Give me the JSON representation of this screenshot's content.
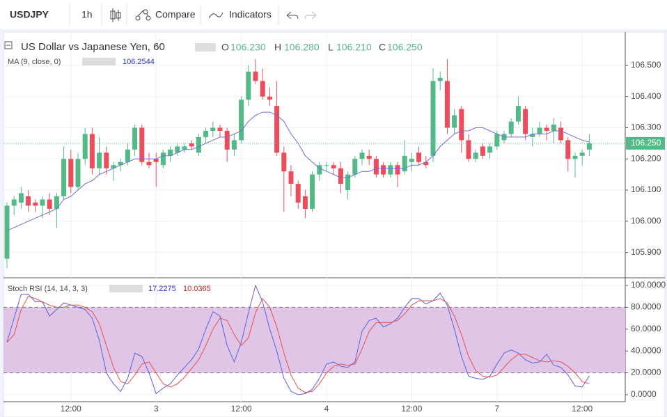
{
  "toolbar": {
    "symbol": "USDJPY",
    "interval": "1h",
    "compare": "Compare",
    "indicators": "Indicators"
  },
  "chart_data": [
    {
      "type": "candlestick",
      "title": "US Dollar vs Japanese Yen, 60",
      "ohlc_text": {
        "o": "O",
        "h": "H",
        "l": "L",
        "c": "C",
        "open": "106.230",
        "high": "106.280",
        "low": "106.210",
        "close": "106.250"
      },
      "last_price_label": "106.250",
      "up_color": "#53b987",
      "down_color": "#eb4d5c",
      "categories": [
        null,
        null,
        null,
        null,
        null,
        null,
        null,
        null,
        null,
        "12:00",
        null,
        null,
        null,
        null,
        null,
        null,
        null,
        null,
        null,
        null,
        null,
        "3",
        null,
        null,
        null,
        null,
        null,
        null,
        null,
        null,
        null,
        null,
        null,
        "12:00",
        null,
        null,
        null,
        null,
        null,
        null,
        null,
        null,
        null,
        null,
        null,
        "4",
        null,
        null,
        null,
        null,
        null,
        null,
        null,
        null,
        null,
        null,
        null,
        "12:00",
        null,
        null,
        null,
        null,
        null,
        null,
        null,
        null,
        null,
        null,
        null,
        "7",
        null,
        null,
        null,
        null,
        null,
        null,
        null,
        null,
        null,
        null,
        null,
        "12:00",
        null
      ],
      "open": [
        105.88,
        106.05,
        106.06,
        106.08,
        106.06,
        106.05,
        106.07,
        106.04,
        106.08,
        106.2,
        106.11,
        106.2,
        106.28,
        106.17,
        106.22,
        106.17,
        106.18,
        106.19,
        106.23,
        106.3,
        106.19,
        106.2,
        106.18,
        106.21,
        106.22,
        106.23,
        106.25,
        106.22,
        106.27,
        106.29,
        106.3,
        106.29,
        106.23,
        106.26,
        106.39,
        106.48,
        106.45,
        106.4,
        106.37,
        106.22,
        106.16,
        106.12,
        106.08,
        106.04,
        106.15,
        106.18,
        106.18,
        106.17,
        106.1,
        106.15,
        106.2,
        106.21,
        106.2,
        106.18,
        106.15,
        106.18,
        106.16,
        106.19,
        106.22,
        106.19,
        106.21,
        106.45,
        106.45,
        106.3,
        106.36,
        106.26,
        106.2,
        106.24,
        106.22,
        106.24,
        106.26,
        106.28,
        106.32,
        106.36,
        106.27,
        106.28,
        106.3,
        106.29,
        106.3,
        106.26,
        106.2,
        106.21,
        106.23
      ],
      "high": [
        106.06,
        106.08,
        106.11,
        106.1,
        106.07,
        106.08,
        106.09,
        106.09,
        106.24,
        106.23,
        106.22,
        106.3,
        106.3,
        106.27,
        106.24,
        106.19,
        106.2,
        106.25,
        106.31,
        106.31,
        106.22,
        106.22,
        106.23,
        106.24,
        106.25,
        106.25,
        106.26,
        106.28,
        106.3,
        106.32,
        106.31,
        106.3,
        106.28,
        106.4,
        106.5,
        106.52,
        106.49,
        106.43,
        106.45,
        106.24,
        106.18,
        106.13,
        106.1,
        106.16,
        106.19,
        106.19,
        106.19,
        106.19,
        106.16,
        106.21,
        106.23,
        106.23,
        106.21,
        106.19,
        106.19,
        106.19,
        106.26,
        106.22,
        106.24,
        106.21,
        106.49,
        106.48,
        106.52,
        106.36,
        106.37,
        106.28,
        106.23,
        106.25,
        106.25,
        106.29,
        106.29,
        106.33,
        106.4,
        106.37,
        106.3,
        106.32,
        106.31,
        106.33,
        106.32,
        106.27,
        106.22,
        106.23,
        106.28
      ],
      "low": [
        105.85,
        106.02,
        106.04,
        106.03,
        106.03,
        106.01,
        106.02,
        105.98,
        106.07,
        106.09,
        106.1,
        106.18,
        106.15,
        106.15,
        106.15,
        106.13,
        106.16,
        106.18,
        106.21,
        106.18,
        106.17,
        106.11,
        106.17,
        106.19,
        106.21,
        106.22,
        106.23,
        106.21,
        106.25,
        106.27,
        106.27,
        106.19,
        106.21,
        106.25,
        106.37,
        106.44,
        106.39,
        106.37,
        106.21,
        106.03,
        106.08,
        106.04,
        106.01,
        106.03,
        106.13,
        106.16,
        106.15,
        106.09,
        106.07,
        106.14,
        106.18,
        106.18,
        106.14,
        106.14,
        106.14,
        106.11,
        106.15,
        106.16,
        106.18,
        106.17,
        106.19,
        106.42,
        106.28,
        106.28,
        106.22,
        106.19,
        106.19,
        106.2,
        106.2,
        106.23,
        106.25,
        106.27,
        106.31,
        106.26,
        106.24,
        106.27,
        106.26,
        106.25,
        106.25,
        106.16,
        106.14,
        106.18,
        106.21
      ],
      "close": [
        106.05,
        106.07,
        106.09,
        106.05,
        106.05,
        106.07,
        106.04,
        106.08,
        106.2,
        106.11,
        106.2,
        106.28,
        106.17,
        106.22,
        106.17,
        106.18,
        106.19,
        106.23,
        106.3,
        106.19,
        106.18,
        106.19,
        106.22,
        106.23,
        106.24,
        106.24,
        106.24,
        106.27,
        106.29,
        106.3,
        106.29,
        106.23,
        106.26,
        106.39,
        106.48,
        106.45,
        106.4,
        106.39,
        106.22,
        106.16,
        106.12,
        106.06,
        106.04,
        106.15,
        106.18,
        106.18,
        106.17,
        106.12,
        106.15,
        106.2,
        106.22,
        106.2,
        106.15,
        106.15,
        106.18,
        106.15,
        106.21,
        106.2,
        106.19,
        106.18,
        106.45,
        106.46,
        106.3,
        106.34,
        106.26,
        106.2,
        106.22,
        106.21,
        106.24,
        106.28,
        106.28,
        106.32,
        106.37,
        106.28,
        106.28,
        106.3,
        106.29,
        106.31,
        106.26,
        106.2,
        106.21,
        106.22,
        106.25
      ],
      "series": [
        {
          "name": "MA (9, close, 0)",
          "color": "#6a6fd8",
          "values": [
            105.97,
            105.98,
            105.99,
            106.0,
            106.01,
            106.02,
            106.03,
            106.04,
            106.07,
            106.08,
            106.1,
            106.12,
            106.13,
            106.15,
            106.16,
            106.17,
            106.18,
            106.19,
            106.2,
            106.2,
            106.2,
            106.2,
            106.21,
            106.21,
            106.22,
            106.23,
            106.23,
            106.24,
            106.25,
            106.26,
            106.27,
            106.27,
            106.28,
            106.29,
            106.32,
            106.34,
            106.35,
            106.35,
            106.34,
            106.32,
            106.28,
            106.25,
            106.21,
            106.19,
            106.17,
            106.16,
            106.15,
            106.14,
            106.14,
            106.15,
            106.16,
            106.16,
            106.17,
            106.17,
            106.17,
            106.17,
            106.17,
            106.18,
            106.18,
            106.19,
            106.21,
            106.24,
            106.26,
            106.28,
            106.29,
            106.29,
            106.3,
            106.3,
            106.29,
            106.28,
            106.27,
            106.27,
            106.27,
            106.27,
            106.28,
            106.28,
            106.28,
            106.29,
            106.29,
            106.28,
            106.27,
            106.26,
            106.2544
          ]
        }
      ],
      "ylim": [
        105.821,
        106.607
      ],
      "yticks": [
        {
          "value": 105.9,
          "label": "105.900"
        },
        {
          "value": 106.0,
          "label": "106.000"
        },
        {
          "value": 106.1,
          "label": "106.100"
        },
        {
          "value": 106.2,
          "label": "106.200"
        },
        {
          "value": 106.3,
          "label": "106.300"
        },
        {
          "value": 106.4,
          "label": "106.400"
        },
        {
          "value": 106.5,
          "label": "106.500"
        }
      ],
      "grid": true
    },
    {
      "type": "line",
      "title": "Stoch RSI (14, 14, 3, 3)",
      "bands": [
        20,
        80
      ],
      "band_color": "#e1c5e7",
      "series": [
        {
          "color": "#5b5fe0",
          "values": [
            48,
            70,
            92,
            92,
            85,
            85,
            72,
            78,
            84,
            82,
            80,
            78,
            70,
            50,
            20,
            10,
            3,
            15,
            38,
            35,
            20,
            1,
            6,
            10,
            18,
            25,
            32,
            42,
            60,
            76,
            72,
            45,
            30,
            48,
            75,
            100,
            85,
            60,
            40,
            15,
            3,
            0,
            1,
            5,
            15,
            28,
            30,
            26,
            25,
            30,
            58,
            68,
            70,
            62,
            65,
            70,
            80,
            88,
            88,
            83,
            86,
            93,
            82,
            60,
            35,
            17,
            15,
            14,
            17,
            28,
            38,
            41,
            38,
            32,
            29,
            30,
            37,
            27,
            25,
            18,
            8,
            7,
            17.2275
          ]
        },
        {
          "color": "#e84f4f",
          "values": [
            48,
            55,
            78,
            90,
            88,
            85,
            82,
            80,
            80,
            82,
            82,
            80,
            76,
            65,
            45,
            25,
            12,
            10,
            18,
            28,
            30,
            20,
            10,
            7,
            10,
            16,
            24,
            32,
            45,
            60,
            70,
            68,
            55,
            45,
            52,
            75,
            88,
            80,
            62,
            38,
            18,
            6,
            2,
            3,
            10,
            20,
            26,
            28,
            27,
            28,
            42,
            58,
            66,
            66,
            66,
            68,
            74,
            82,
            86,
            86,
            86,
            88,
            84,
            72,
            55,
            35,
            22,
            17,
            16,
            18,
            25,
            32,
            37,
            37,
            34,
            31,
            30,
            31,
            30,
            26,
            20,
            12,
            10.0365
          ]
        }
      ],
      "ylim": [
        -6.4,
        106.4
      ],
      "yticks": [
        {
          "value": 0,
          "label": "0.0000"
        },
        {
          "value": 20,
          "label": "20.0000"
        },
        {
          "value": 40,
          "label": "40.0000"
        },
        {
          "value": 60,
          "label": "60.0000"
        },
        {
          "value": 80,
          "label": "80.0000"
        },
        {
          "value": 100,
          "label": "100.0000"
        }
      ],
      "grid": true
    }
  ]
}
